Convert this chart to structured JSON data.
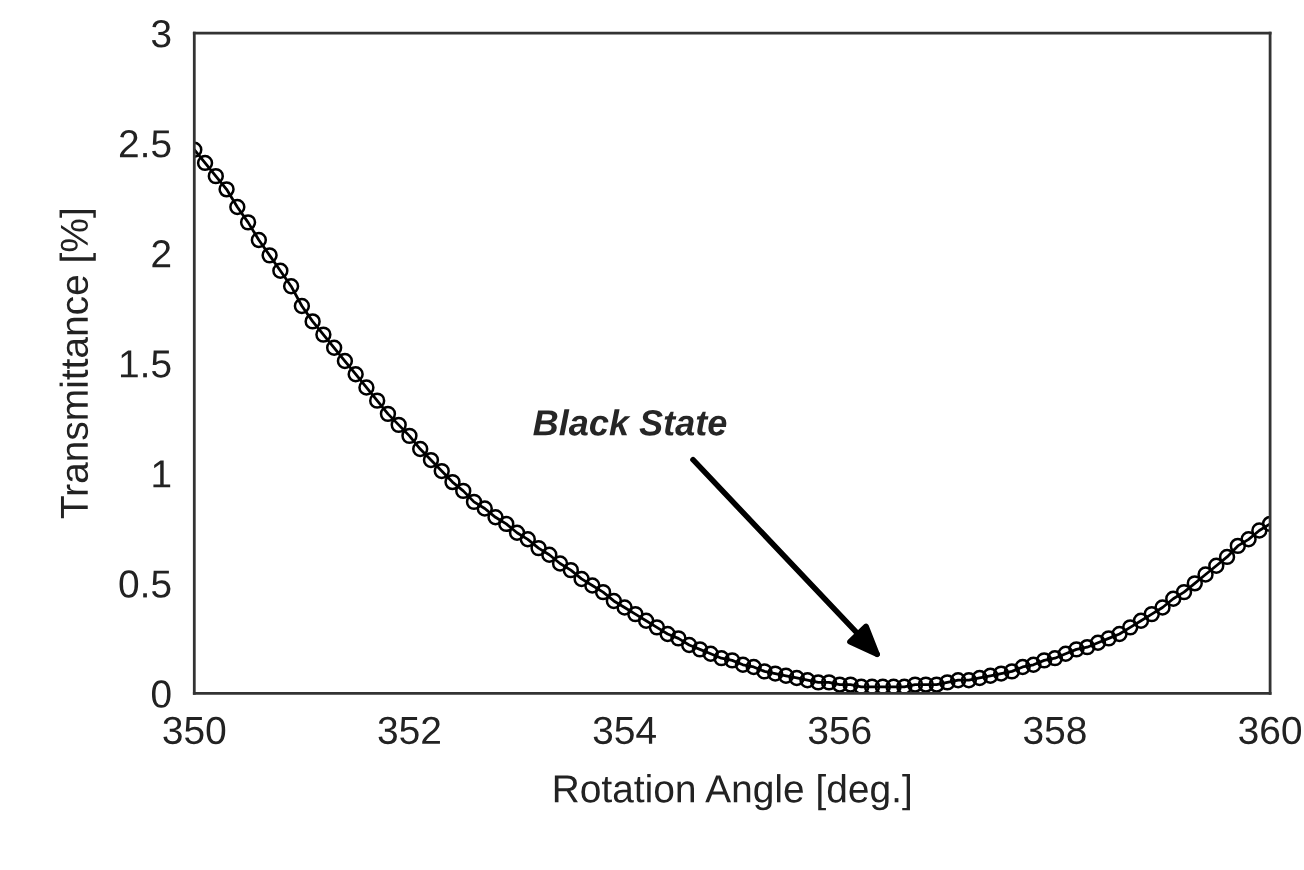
{
  "chart_data": {
    "type": "line",
    "xlabel": "Rotation Angle [deg.]",
    "ylabel": "Transmittance [%]",
    "x": [
      350.0,
      350.1,
      350.2,
      350.3,
      350.4,
      350.5,
      350.6,
      350.7,
      350.8,
      350.9,
      351.0,
      351.1,
      351.2,
      351.3,
      351.4,
      351.5,
      351.6,
      351.7,
      351.8,
      351.9,
      352.0,
      352.1,
      352.2,
      352.3,
      352.4,
      352.5,
      352.6,
      352.7,
      352.8,
      352.9,
      353.0,
      353.1,
      353.2,
      353.3,
      353.4,
      353.5,
      353.6,
      353.7,
      353.8,
      353.9,
      354.0,
      354.1,
      354.2,
      354.3,
      354.4,
      354.5,
      354.6,
      354.7,
      354.8,
      354.9,
      355.0,
      355.1,
      355.2,
      355.3,
      355.4,
      355.5,
      355.6,
      355.7,
      355.8,
      355.9,
      356.0,
      356.1,
      356.2,
      356.3,
      356.4,
      356.5,
      356.6,
      356.7,
      356.8,
      356.9,
      357.0,
      357.1,
      357.2,
      357.3,
      357.4,
      357.5,
      357.6,
      357.7,
      357.8,
      357.9,
      358.0,
      358.1,
      358.2,
      358.3,
      358.4,
      358.5,
      358.6,
      358.7,
      358.8,
      358.9,
      359.0,
      359.1,
      359.2,
      359.3,
      359.4,
      359.5,
      359.6,
      359.7,
      359.8,
      359.9,
      360.0
    ],
    "series": [
      {
        "color": "#000000",
        "values": [
          2.47,
          2.41,
          2.35,
          2.29,
          2.21,
          2.14,
          2.06,
          1.99,
          1.92,
          1.85,
          1.76,
          1.69,
          1.63,
          1.57,
          1.51,
          1.45,
          1.39,
          1.33,
          1.27,
          1.22,
          1.17,
          1.11,
          1.06,
          1.01,
          0.96,
          0.92,
          0.87,
          0.84,
          0.8,
          0.77,
          0.73,
          0.7,
          0.66,
          0.63,
          0.59,
          0.56,
          0.52,
          0.49,
          0.46,
          0.42,
          0.39,
          0.36,
          0.33,
          0.3,
          0.27,
          0.25,
          0.22,
          0.2,
          0.18,
          0.16,
          0.15,
          0.13,
          0.12,
          0.1,
          0.09,
          0.08,
          0.07,
          0.06,
          0.05,
          0.05,
          0.04,
          0.04,
          0.03,
          0.03,
          0.03,
          0.03,
          0.03,
          0.04,
          0.04,
          0.04,
          0.05,
          0.06,
          0.06,
          0.07,
          0.08,
          0.09,
          0.1,
          0.12,
          0.13,
          0.15,
          0.16,
          0.18,
          0.2,
          0.21,
          0.23,
          0.25,
          0.27,
          0.3,
          0.33,
          0.36,
          0.39,
          0.43,
          0.46,
          0.5,
          0.54,
          0.58,
          0.62,
          0.67,
          0.7,
          0.74,
          0.77
        ]
      }
    ],
    "xlim": [
      350,
      360
    ],
    "xticks": [
      350,
      352,
      354,
      356,
      358,
      360
    ],
    "ylim": [
      0,
      3
    ],
    "yticks": [
      0,
      0.5,
      1,
      1.5,
      2,
      2.5,
      3
    ],
    "annotations": [
      "Black State"
    ],
    "grid": false,
    "legend": false,
    "marker": "circle",
    "line_style": "solid"
  }
}
